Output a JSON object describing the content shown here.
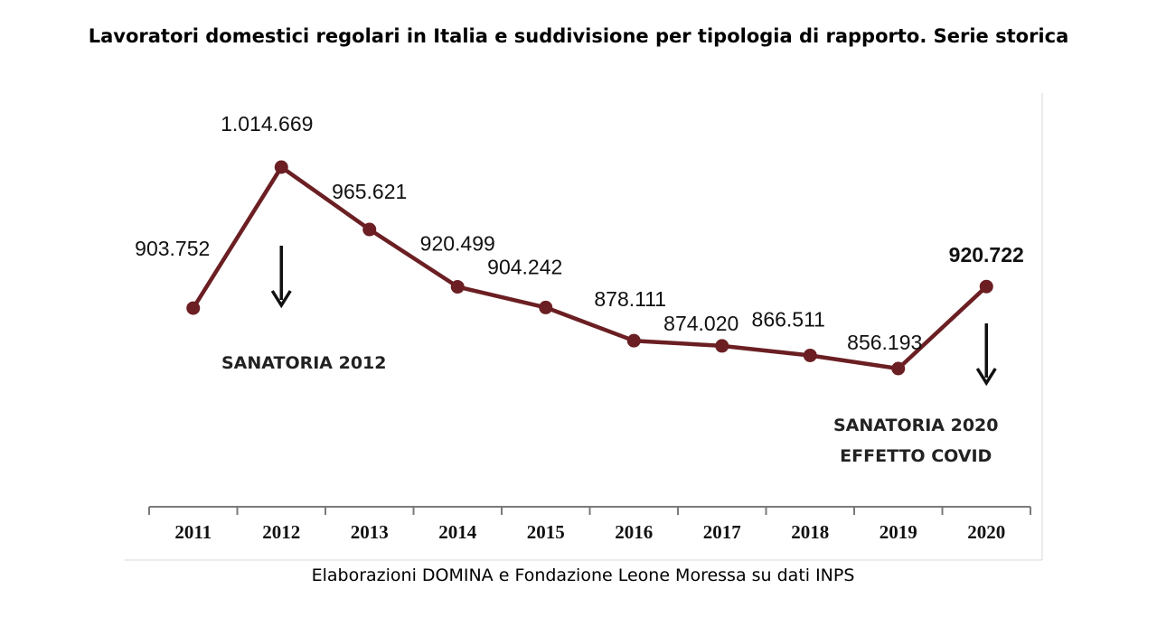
{
  "title": "Lavoratori domestici regolari in Italia e suddivisione per tipologia di rapporto. Serie storica",
  "source": "Elaborazioni DOMINA e Fondazione Leone Moressa su dati INPS",
  "colors": {
    "line": "#6b1f23",
    "marker": "#6b1f23",
    "axis": "#7a7a7a",
    "frame": "#d9d9d9"
  },
  "chart_data": {
    "type": "line",
    "categories": [
      "2011",
      "2012",
      "2013",
      "2014",
      "2015",
      "2016",
      "2017",
      "2018",
      "2019",
      "2020"
    ],
    "values": [
      903752,
      1014669,
      965621,
      920499,
      904242,
      878111,
      874020,
      866511,
      856193,
      920722
    ],
    "data_labels": [
      "903.752",
      "1.014.669",
      "965.621",
      "920.499",
      "904.242",
      "878.111",
      "874.020",
      "866.511",
      "856.193",
      "920.722"
    ],
    "grid": false,
    "legend": "none",
    "annotations": [
      {
        "category": "2012",
        "lines": [
          "SANATORIA 2012"
        ],
        "icon": "arrow-down-icon"
      },
      {
        "category": "2020",
        "lines": [
          "SANATORIA 2020",
          "EFFETTO COVID"
        ],
        "icon": "arrow-down-icon"
      }
    ]
  }
}
